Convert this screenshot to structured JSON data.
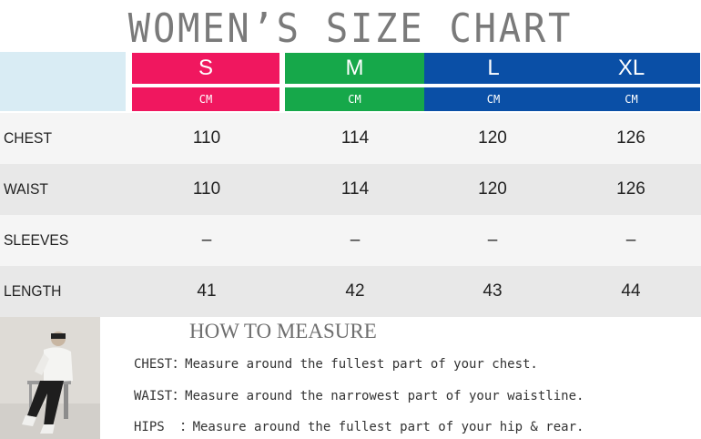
{
  "title": "WOMEN’S SIZE CHART",
  "sizes": [
    {
      "label": "S",
      "unit": "CM",
      "color": "#f0175f"
    },
    {
      "label": "M",
      "unit": "CM",
      "color": "#16a84a"
    },
    {
      "label": "L",
      "unit": "CM",
      "color": "#0a4fa6"
    },
    {
      "label": "XL",
      "unit": "CM",
      "color": "#0a4fa6"
    }
  ],
  "rows": [
    {
      "label": "CHEST",
      "values": [
        "110",
        "114",
        "120",
        "126"
      ]
    },
    {
      "label": "WAIST",
      "values": [
        "110",
        "114",
        "120",
        "126"
      ]
    },
    {
      "label": "SLEEVES",
      "values": [
        "–",
        "–",
        "–",
        "–"
      ]
    },
    {
      "label": "LENGTH",
      "values": [
        "41",
        "42",
        "43",
        "44"
      ]
    }
  ],
  "row_colors": [
    "#f5f5f5",
    "#e8e8e8"
  ],
  "measure": {
    "title": "HOW TO MEASURE",
    "lines": [
      "CHEST：Measure around the fullest part of your chest.",
      "WAIST：Measure around the narrowest part of your waistline.",
      "HIPS  ：Measure around the fullest part of your hip & rear."
    ]
  }
}
